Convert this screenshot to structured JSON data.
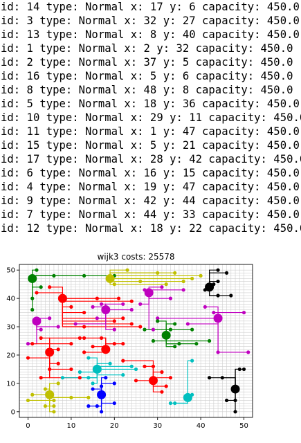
{
  "console": {
    "lines": [
      "id: 14 type: Normal x: 17 y: 6 capacity: 450.0",
      "id: 3 type: Normal x: 32 y: 27 capacity: 450.0",
      "id: 13 type: Normal x: 8 y: 40 capacity: 450.0",
      "id: 1 type: Normal x: 2 y: 32 capacity: 450.0",
      "id: 2 type: Normal x: 37 y: 5 capacity: 450.0",
      "id: 16 type: Normal x: 5 y: 6 capacity: 450.0",
      "id: 8 type: Normal x: 48 y: 8 capacity: 450.0",
      "id: 5 type: Normal x: 18 y: 36 capacity: 450.0",
      "id: 10 type: Normal x: 29 y: 11 capacity: 450.0",
      "id: 11 type: Normal x: 1 y: 47 capacity: 450.0",
      "id: 15 type: Normal x: 5 y: 21 capacity: 450.0",
      "id: 17 type: Normal x: 28 y: 42 capacity: 450.0",
      "id: 6 type: Normal x: 16 y: 15 capacity: 450.0",
      "id: 4 type: Normal x: 19 y: 47 capacity: 450.0",
      "id: 9 type: Normal x: 42 y: 44 capacity: 450.0",
      "id: 7 type: Normal x: 44 y: 33 capacity: 450.0",
      "id: 12 type: Normal x: 18 y: 22 capacity: 450.0"
    ]
  },
  "chart_data": {
    "type": "scatter",
    "title": "wijk3 costs: 25578",
    "xlabel": "",
    "ylabel": "",
    "xlim": [
      -2,
      52
    ],
    "ylim": [
      -2,
      52
    ],
    "xticks": [
      0,
      10,
      20,
      30,
      40,
      50
    ],
    "yticks": [
      0,
      10,
      20,
      30,
      40,
      50
    ],
    "grid": true,
    "hubs": [
      {
        "x": 17,
        "y": 6,
        "color": "#0000ff"
      },
      {
        "x": 32,
        "y": 27,
        "color": "#008000"
      },
      {
        "x": 8,
        "y": 40,
        "color": "#ff0000"
      },
      {
        "x": 2,
        "y": 32,
        "color": "#bf00bf"
      },
      {
        "x": 37,
        "y": 5,
        "color": "#00bfbf"
      },
      {
        "x": 5,
        "y": 6,
        "color": "#bfbf00"
      },
      {
        "x": 48,
        "y": 8,
        "color": "#000000"
      },
      {
        "x": 18,
        "y": 36,
        "color": "#bf00bf"
      },
      {
        "x": 29,
        "y": 11,
        "color": "#ff0000"
      },
      {
        "x": 1,
        "y": 47,
        "color": "#008000"
      },
      {
        "x": 5,
        "y": 21,
        "color": "#ff0000"
      },
      {
        "x": 28,
        "y": 42,
        "color": "#bf00bf"
      },
      {
        "x": 16,
        "y": 15,
        "color": "#00bfbf"
      },
      {
        "x": 19,
        "y": 47,
        "color": "#bfbf00"
      },
      {
        "x": 42,
        "y": 44,
        "color": "#000000"
      },
      {
        "x": 44,
        "y": 33,
        "color": "#bf00bf"
      },
      {
        "x": 18,
        "y": 22,
        "color": "#ff0000"
      }
    ],
    "clusters": [
      {
        "color": "#008000",
        "hub": [
          1,
          47
        ],
        "points": [
          [
            2,
            50
          ],
          [
            6,
            48
          ],
          [
            13,
            48
          ],
          [
            20,
            48
          ],
          [
            3,
            44
          ],
          [
            1,
            40
          ],
          [
            1,
            36
          ]
        ]
      },
      {
        "color": "#bfbf00",
        "hub": [
          19,
          47
        ],
        "points": [
          [
            23,
            50
          ],
          [
            30,
            49
          ],
          [
            34,
            49
          ],
          [
            40,
            48
          ],
          [
            38,
            47
          ],
          [
            36,
            46
          ],
          [
            32,
            45
          ],
          [
            26,
            46
          ],
          [
            20,
            45
          ]
        ]
      },
      {
        "color": "#ff0000",
        "hub": [
          8,
          40
        ],
        "points": [
          [
            2,
            42
          ],
          [
            5,
            44
          ],
          [
            16,
            40
          ],
          [
            21,
            40
          ],
          [
            24,
            39
          ],
          [
            10,
            37
          ],
          [
            13,
            35
          ],
          [
            20,
            32
          ],
          [
            22,
            33
          ],
          [
            13,
            30
          ],
          [
            24,
            31
          ],
          [
            26,
            30
          ]
        ]
      },
      {
        "color": "#bf00bf",
        "hub": [
          18,
          36
        ],
        "points": [
          [
            15,
            37
          ],
          [
            17,
            38
          ],
          [
            22,
            38
          ],
          [
            24,
            36
          ],
          [
            16,
            33
          ],
          [
            20,
            29
          ],
          [
            11,
            31
          ]
        ]
      },
      {
        "color": "#bf00bf",
        "hub": [
          2,
          32
        ],
        "points": [
          [
            0,
            24
          ],
          [
            3,
            29
          ],
          [
            5,
            33
          ],
          [
            7,
            30
          ]
        ]
      },
      {
        "color": "#bf00bf",
        "hub": [
          28,
          42
        ],
        "points": [
          [
            27,
            43
          ],
          [
            31,
            44
          ],
          [
            36,
            43
          ],
          [
            33,
            40
          ],
          [
            26,
            38
          ],
          [
            29,
            29
          ]
        ]
      },
      {
        "color": "#bf00bf",
        "hub": [
          44,
          33
        ],
        "points": [
          [
            41,
            37
          ],
          [
            43,
            35
          ],
          [
            50,
            35
          ],
          [
            44,
            21
          ],
          [
            51,
            21
          ],
          [
            37,
            31
          ],
          [
            30,
            33
          ]
        ]
      },
      {
        "color": "#000000",
        "hub": [
          42,
          44
        ],
        "points": [
          [
            44,
            50
          ],
          [
            46,
            49
          ],
          [
            44,
            46
          ],
          [
            43,
            45
          ],
          [
            41,
            43
          ],
          [
            44,
            41
          ],
          [
            47,
            41
          ]
        ]
      },
      {
        "color": "#000000",
        "hub": [
          48,
          8
        ],
        "points": [
          [
            49,
            15
          ],
          [
            50,
            15
          ],
          [
            45,
            12
          ],
          [
            42,
            12
          ],
          [
            46,
            4
          ],
          [
            48,
            4
          ],
          [
            48,
            0
          ]
        ]
      },
      {
        "color": "#008000",
        "hub": [
          32,
          27
        ],
        "points": [
          [
            30,
            32
          ],
          [
            34,
            31
          ],
          [
            33,
            29
          ],
          [
            27,
            29
          ],
          [
            38,
            29
          ],
          [
            29,
            25
          ],
          [
            35,
            24
          ],
          [
            39,
            24
          ],
          [
            42,
            25
          ],
          [
            34,
            23
          ]
        ]
      },
      {
        "color": "#ff0000",
        "hub": [
          5,
          21
        ],
        "points": [
          [
            1,
            24
          ],
          [
            3,
            26
          ],
          [
            0,
            19
          ],
          [
            7,
            22
          ],
          [
            10,
            24
          ],
          [
            7,
            17
          ],
          [
            10,
            15
          ],
          [
            5,
            15
          ],
          [
            3,
            12
          ],
          [
            12,
            12
          ],
          [
            13,
            26
          ]
        ]
      },
      {
        "color": "#ff0000",
        "hub": [
          18,
          22
        ],
        "points": [
          [
            12,
            26
          ],
          [
            20,
            24
          ],
          [
            22,
            24
          ],
          [
            13,
            21
          ],
          [
            15,
            23
          ],
          [
            17,
            26
          ]
        ]
      },
      {
        "color": "#ff0000",
        "hub": [
          29,
          11
        ],
        "points": [
          [
            22,
            18
          ],
          [
            27,
            16
          ],
          [
            29,
            16
          ],
          [
            31,
            14
          ],
          [
            33,
            12
          ],
          [
            32,
            9
          ],
          [
            25,
            11
          ],
          [
            31,
            7
          ]
        ]
      },
      {
        "color": "#00bfbf",
        "hub": [
          16,
          15
        ],
        "points": [
          [
            14,
            19
          ],
          [
            19,
            17
          ],
          [
            24,
            16
          ],
          [
            25,
            15
          ],
          [
            22,
            13
          ],
          [
            14,
            12
          ],
          [
            8,
            12
          ],
          [
            15,
            10
          ],
          [
            12,
            14
          ]
        ]
      },
      {
        "color": "#00bfbf",
        "hub": [
          37,
          5
        ],
        "points": [
          [
            38,
            18
          ],
          [
            34,
            3
          ],
          [
            33,
            3
          ],
          [
            38,
            6
          ]
        ]
      },
      {
        "color": "#0000ff",
        "hub": [
          17,
          6
        ],
        "points": [
          [
            18,
            12
          ],
          [
            20,
            10
          ],
          [
            17,
            9
          ],
          [
            15,
            8
          ],
          [
            17,
            0
          ],
          [
            14,
            2
          ],
          [
            20,
            3
          ],
          [
            16,
            2
          ]
        ]
      },
      {
        "color": "#bfbf00",
        "hub": [
          5,
          6
        ],
        "points": [
          [
            7,
            10
          ],
          [
            4,
            8
          ],
          [
            1,
            6
          ],
          [
            0,
            4
          ],
          [
            6,
            2
          ],
          [
            4,
            2
          ],
          [
            6,
            0
          ],
          [
            10,
            5
          ],
          [
            14,
            5
          ],
          [
            6,
            4
          ]
        ]
      }
    ]
  }
}
